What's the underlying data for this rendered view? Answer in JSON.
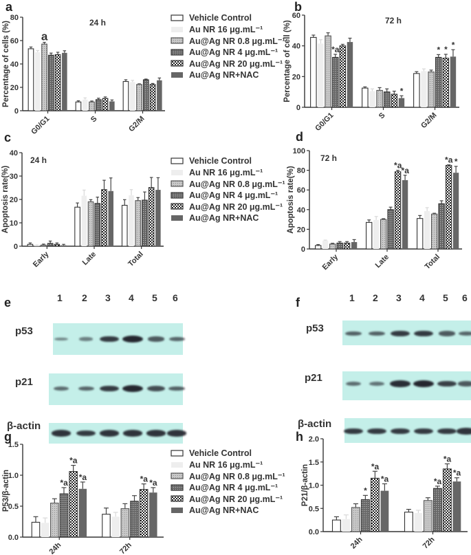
{
  "panels": {
    "a": "a",
    "b": "b",
    "c": "c",
    "d": "d",
    "e": "e",
    "f": "f",
    "g": "g",
    "h": "h"
  },
  "legend": [
    {
      "label": "Vehicle Control",
      "style": "white"
    },
    {
      "label": "Au NR 16 μg.mL⁻¹",
      "style": "light"
    },
    {
      "label": "Au@Ag NR 0.8 μg.mL⁻¹",
      "style": "dotted"
    },
    {
      "label": "Au@Ag NR 4 μg.mL⁻¹",
      "style": "crosshatch"
    },
    {
      "label": "Au@Ag NR 20 μg.mL⁻¹",
      "style": "checker"
    },
    {
      "label": "Au@Ag NR+NAC",
      "style": "dark"
    }
  ],
  "colors": {
    "axis": "#333333",
    "white": "#ffffff",
    "light": "#eeeeee",
    "dotted": "#bbbbbb",
    "crosshatch": "#555555",
    "checker": "#222222",
    "dark": "#666666",
    "blot_bg": "#c4efe9",
    "band": "#1d1d26"
  },
  "chart_data": [
    {
      "panel": "a",
      "type": "bar",
      "title": "24 h",
      "ylabel": "Percentage of cells (%)",
      "ylim": [
        0,
        80
      ],
      "yticks": [
        "0",
        "20",
        "40",
        "60",
        "80"
      ],
      "ytick_values": [
        0,
        20,
        40,
        60,
        80
      ],
      "categories": [
        "G0/G1",
        "S",
        "G2/M"
      ],
      "series": [
        {
          "name": "Vehicle Control",
          "values": [
            53,
            7.5,
            25
          ],
          "err": [
            1.5,
            1,
            1.5
          ]
        },
        {
          "name": "Au NR 16 μg.mL⁻¹",
          "values": [
            50,
            9.5,
            24.5
          ],
          "err": [
            1.5,
            1.5,
            1.5
          ]
        },
        {
          "name": "Au@Ag NR 0.8 μg.mL⁻¹",
          "values": [
            57,
            7.5,
            22.5
          ],
          "err": [
            1.5,
            0.8,
            0.5
          ]
        },
        {
          "name": "Au@Ag NR 4 μg.mL⁻¹",
          "values": [
            47.5,
            9.5,
            26.5
          ],
          "err": [
            1.8,
            1.2,
            0.6
          ]
        },
        {
          "name": "Au@Ag NR 20 μg.mL⁻¹",
          "values": [
            48,
            10.5,
            22.5
          ],
          "err": [
            2,
            1.3,
            0.8
          ]
        },
        {
          "name": "Au@Ag NR+NAC",
          "values": [
            49.5,
            8,
            26
          ],
          "err": [
            1.8,
            1.2,
            2
          ]
        }
      ],
      "annotations": [
        {
          "category": "G0/G1",
          "series": 2,
          "text": "a"
        }
      ]
    },
    {
      "panel": "b",
      "type": "bar",
      "title": "72 h",
      "ylabel": "Percentage of cell (%)",
      "ylim": [
        0,
        60
      ],
      "yticks": [
        "0",
        "20",
        "40",
        "60"
      ],
      "ytick_values": [
        0,
        20,
        40,
        60
      ],
      "categories": [
        "G0/G1",
        "S",
        "G2/M"
      ],
      "series": [
        {
          "name": "Vehicle Control",
          "values": [
            45.5,
            12.5,
            22
          ],
          "err": [
            1.5,
            0.8,
            1.2
          ]
        },
        {
          "name": "Au NR 16 μg.mL⁻¹",
          "values": [
            41.5,
            10.5,
            23.5
          ],
          "err": [
            2.5,
            1.5,
            1.5
          ]
        },
        {
          "name": "Au@Ag NR 0.8 μg.mL⁻¹",
          "values": [
            46.5,
            11,
            23
          ],
          "err": [
            2,
            1.8,
            1.2
          ]
        },
        {
          "name": "Au@Ag NR 4 μg.mL⁻¹",
          "values": [
            32.5,
            10,
            32.5
          ],
          "err": [
            2,
            2,
            1.8
          ]
        },
        {
          "name": "Au@Ag NR 20 μg.mL⁻¹",
          "values": [
            40,
            8.5,
            32
          ],
          "err": [
            1,
            2,
            2.5
          ]
        },
        {
          "name": "Au@Ag NR+NAC",
          "values": [
            42.5,
            6,
            33
          ],
          "err": [
            2.5,
            1.5,
            4.5
          ]
        }
      ],
      "annotations": [
        {
          "category": "G0/G1",
          "series": 3,
          "text": "*a"
        },
        {
          "category": "S",
          "series": 5,
          "text": "*"
        },
        {
          "category": "G2/M",
          "series": 3,
          "text": "*"
        },
        {
          "category": "G2/M",
          "series": 4,
          "text": "*"
        },
        {
          "category": "G2/M",
          "series": 5,
          "text": "*"
        }
      ]
    },
    {
      "panel": "c",
      "type": "bar",
      "title": "24 h",
      "ylabel": "Apoptosis rate(%)",
      "ylim": [
        0,
        40
      ],
      "yticks": [
        "0",
        "10",
        "20",
        "30",
        "40"
      ],
      "ytick_values": [
        0,
        10,
        20,
        30,
        40
      ],
      "categories": [
        "Early",
        "Late",
        "Total"
      ],
      "series": [
        {
          "name": "Vehicle Control",
          "values": [
            0.8,
            16.7,
            17.5
          ],
          "err": [
            0.6,
            1.8,
            2.4
          ]
        },
        {
          "name": "Au NR 16 μg.mL⁻¹",
          "values": [
            0.2,
            21.6,
            21.8
          ],
          "err": [
            0.3,
            2.4,
            2.4
          ]
        },
        {
          "name": "Au@Ag NR 0.8 μg.mL⁻¹",
          "values": [
            0.5,
            19,
            19.5
          ],
          "err": [
            0.4,
            0.9,
            1.3
          ]
        },
        {
          "name": "Au@Ag NR 4 μg.mL⁻¹",
          "values": [
            1.2,
            18.3,
            19.7
          ],
          "err": [
            1,
            2.7,
            3.5
          ]
        },
        {
          "name": "Au@Ag NR 20 μg.mL⁻¹",
          "values": [
            0.8,
            24.2,
            25.1
          ],
          "err": [
            0.6,
            4,
            4.3
          ]
        },
        {
          "name": "Au@Ag NR+NAC",
          "values": [
            0.4,
            23.6,
            24.1
          ],
          "err": [
            0.4,
            5.6,
            5.2
          ]
        }
      ],
      "annotations": []
    },
    {
      "panel": "d",
      "type": "bar",
      "title": "72 h",
      "ylabel": "Apoptosis rate(%)",
      "ylim": [
        0,
        100
      ],
      "yticks": [
        "0",
        "20",
        "40",
        "60",
        "80",
        "100"
      ],
      "ytick_values": [
        0,
        20,
        40,
        60,
        80,
        100
      ],
      "categories": [
        "Early",
        "Late",
        "Total"
      ],
      "series": [
        {
          "name": "Vehicle Control",
          "values": [
            3.5,
            27,
            31
          ],
          "err": [
            1,
            2.5,
            3
          ]
        },
        {
          "name": "Au NR 16 μg.mL⁻¹",
          "values": [
            8.5,
            29.5,
            38.5
          ],
          "err": [
            0.5,
            3.5,
            3.5
          ]
        },
        {
          "name": "Au@Ag NR 0.8 μg.mL⁻¹",
          "values": [
            5,
            30,
            35.5
          ],
          "err": [
            0.8,
            0.8,
            0.8
          ]
        },
        {
          "name": "Au@Ag NR 4 μg.mL⁻¹",
          "values": [
            6,
            40,
            46
          ],
          "err": [
            1.5,
            2.5,
            3
          ]
        },
        {
          "name": "Au@Ag NR 20 μg.mL⁻¹",
          "values": [
            6,
            78.5,
            85
          ],
          "err": [
            1.5,
            1.5,
            0.5
          ]
        },
        {
          "name": "Au@Ag NR+NAC",
          "values": [
            7,
            70,
            77.5
          ],
          "err": [
            2.5,
            5,
            6.5
          ]
        }
      ],
      "annotations": [
        {
          "category": "Late",
          "series": 4,
          "text": "*a"
        },
        {
          "category": "Late",
          "series": 5,
          "text": "*a"
        },
        {
          "category": "Total",
          "series": 4,
          "text": "*a"
        },
        {
          "category": "Total",
          "series": 5,
          "text": "*"
        }
      ]
    },
    {
      "panel": "g",
      "type": "bar",
      "title": "",
      "ylabel": "P53/β-actin",
      "ylim": [
        0,
        1.5
      ],
      "yticks": [
        "0.0",
        "0.5",
        "1.0",
        "1.5"
      ],
      "ytick_values": [
        0,
        0.5,
        1,
        1.5
      ],
      "categories": [
        "24h",
        "72h"
      ],
      "series": [
        {
          "name": "Vehicle Control",
          "values": [
            0.24,
            0.37
          ],
          "err": [
            0.09,
            0.1
          ]
        },
        {
          "name": "Au NR 16 μg.mL⁻¹",
          "values": [
            0.23,
            0.33
          ],
          "err": [
            0.08,
            0.07
          ]
        },
        {
          "name": "Au@Ag NR 0.8 μg.mL⁻¹",
          "values": [
            0.55,
            0.46
          ],
          "err": [
            0.07,
            0.08
          ]
        },
        {
          "name": "Au@Ag NR 4 μg.mL⁻¹",
          "values": [
            0.7,
            0.58
          ],
          "err": [
            0.1,
            0.09
          ]
        },
        {
          "name": "Au@Ag NR 20 μg.mL⁻¹",
          "values": [
            1.06,
            0.77
          ],
          "err": [
            0.1,
            0.09
          ]
        },
        {
          "name": "Au@Ag NR+NAC",
          "values": [
            0.78,
            0.72
          ],
          "err": [
            0.11,
            0.08
          ]
        }
      ],
      "annotations": [
        {
          "category": "24h",
          "series": 3,
          "text": "*a"
        },
        {
          "category": "24h",
          "series": 4,
          "text": "*a"
        },
        {
          "category": "24h",
          "series": 5,
          "text": "*a"
        },
        {
          "category": "72h",
          "series": 4,
          "text": "*a"
        },
        {
          "category": "72h",
          "series": 5,
          "text": "*a"
        }
      ]
    },
    {
      "panel": "h",
      "type": "bar",
      "title": "",
      "ylabel": "P21/β-actin",
      "ylim": [
        0,
        2.0
      ],
      "yticks": [
        "0.0",
        "0.5",
        "1.0",
        "1.5",
        "2.0"
      ],
      "ytick_values": [
        0,
        0.5,
        1,
        1.5,
        2
      ],
      "categories": [
        "24h",
        "72h"
      ],
      "series": [
        {
          "name": "Vehicle Control",
          "values": [
            0.25,
            0.42
          ],
          "err": [
            0.07,
            0.06
          ]
        },
        {
          "name": "Au NR 16 μg.mL⁻¹",
          "values": [
            0.27,
            0.4
          ],
          "err": [
            0.09,
            0.06
          ]
        },
        {
          "name": "Au@Ag NR 0.8 μg.mL⁻¹",
          "values": [
            0.52,
            0.67
          ],
          "err": [
            0.08,
            0.06
          ]
        },
        {
          "name": "Au@Ag NR 4 μg.mL⁻¹",
          "values": [
            0.69,
            0.93
          ],
          "err": [
            0.09,
            0.05
          ]
        },
        {
          "name": "Au@Ag NR 20 μg.mL⁻¹",
          "values": [
            1.15,
            1.35
          ],
          "err": [
            0.15,
            0.11
          ]
        },
        {
          "name": "Au@Ag NR+NAC",
          "values": [
            0.88,
            1.08
          ],
          "err": [
            0.15,
            0.08
          ]
        }
      ],
      "annotations": [
        {
          "category": "24h",
          "series": 3,
          "text": "*"
        },
        {
          "category": "24h",
          "series": 4,
          "text": "*a"
        },
        {
          "category": "24h",
          "series": 5,
          "text": "*a"
        },
        {
          "category": "72h",
          "series": 3,
          "text": "*a"
        },
        {
          "category": "72h",
          "series": 4,
          "text": "*a"
        },
        {
          "category": "72h",
          "series": 5,
          "text": "*a"
        }
      ]
    }
  ],
  "blots": {
    "e": {
      "lanes": [
        "1",
        "2",
        "3",
        "4",
        "5",
        "6"
      ],
      "rows": [
        {
          "label": "p53",
          "intensity": [
            0.25,
            0.3,
            0.85,
            1.0,
            0.6,
            0.5
          ]
        },
        {
          "label": "p21",
          "intensity": [
            0.45,
            0.5,
            0.85,
            1.0,
            0.7,
            0.55
          ]
        },
        {
          "label": "β-actin",
          "intensity": [
            0.9,
            0.85,
            0.9,
            0.9,
            0.9,
            0.9
          ]
        }
      ]
    },
    "f": {
      "lanes": [
        "1",
        "2",
        "3",
        "4",
        "5",
        "6"
      ],
      "rows": [
        {
          "label": "p53",
          "intensity": [
            0.55,
            0.55,
            0.85,
            0.85,
            0.6,
            0.5
          ]
        },
        {
          "label": "p21",
          "intensity": [
            0.45,
            0.4,
            0.95,
            1.0,
            0.8,
            0.6
          ]
        },
        {
          "label": "β-actin",
          "intensity": [
            0.85,
            0.85,
            0.85,
            0.85,
            0.85,
            0.9
          ]
        }
      ]
    }
  }
}
